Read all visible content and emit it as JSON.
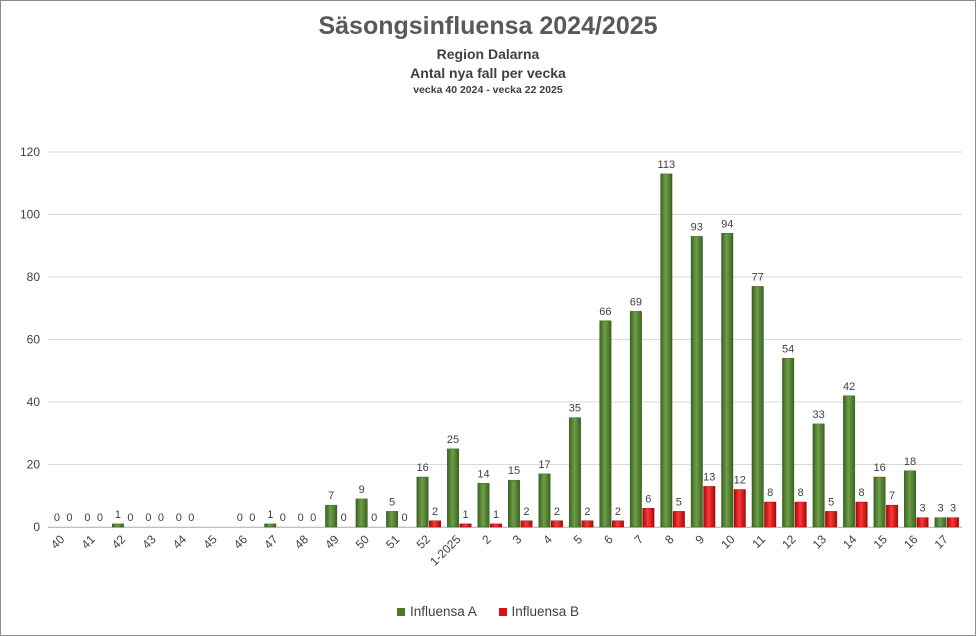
{
  "chart_data": {
    "type": "bar",
    "title": "Säsongsinfluensa 2024/2025",
    "subtitle": "Region Dalarna",
    "subtitle2": "Antal nya fall per vecka",
    "subtitle3": "vecka 40 2024 - vecka 22 2025",
    "xlabel": "",
    "ylabel": "",
    "ylim": [
      0,
      120
    ],
    "yticks": [
      "0",
      "20",
      "40",
      "60",
      "80",
      "100",
      "120"
    ],
    "grid": true,
    "legend_position": "bottom",
    "categories": [
      "40",
      "41",
      "42",
      "43",
      "44",
      "45",
      "46",
      "47",
      "48",
      "49",
      "50",
      "51",
      "52",
      "1-2025",
      "2",
      "3",
      "4",
      "5",
      "6",
      "7",
      "8",
      "9",
      "10",
      "11",
      "12",
      "13",
      "14",
      "15",
      "16",
      "17"
    ],
    "series": [
      {
        "name": "Influensa A",
        "color": "#4a7a2a",
        "values": [
          0,
          0,
          1,
          0,
          0,
          null,
          0,
          1,
          0,
          7,
          9,
          5,
          16,
          25,
          14,
          15,
          17,
          35,
          66,
          69,
          113,
          93,
          94,
          77,
          54,
          33,
          42,
          16,
          18,
          3
        ]
      },
      {
        "name": "Influensa B",
        "color": "#dd1111",
        "values": [
          0,
          0,
          0,
          0,
          0,
          null,
          0,
          0,
          0,
          0,
          0,
          0,
          2,
          1,
          1,
          2,
          2,
          2,
          2,
          6,
          5,
          13,
          12,
          8,
          8,
          5,
          8,
          7,
          3,
          3
        ]
      }
    ]
  }
}
